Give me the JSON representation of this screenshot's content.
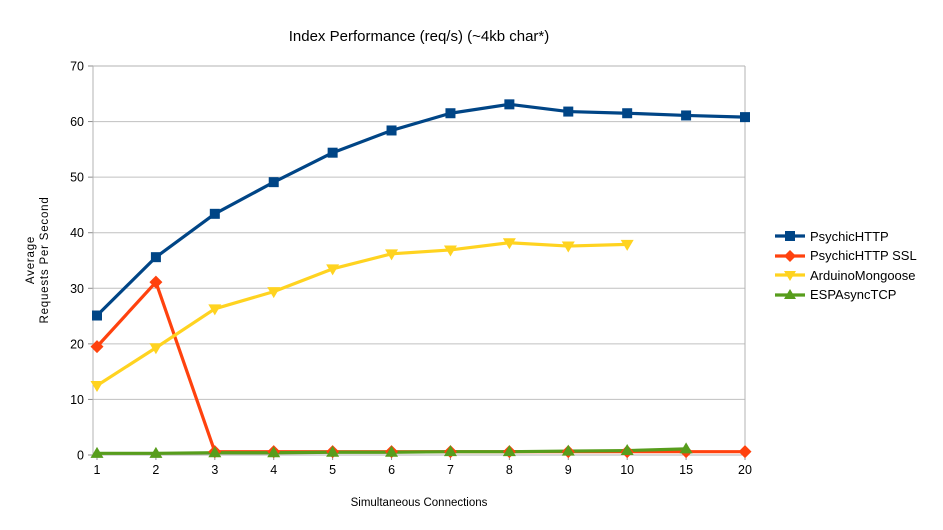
{
  "chart_data": {
    "type": "line",
    "title": "Index Performance (req/s) (~4kb char*)",
    "xlabel": "Simultaneous Connections",
    "ylabel": "Average Requests Per Second",
    "ylabel_lines": [
      "Average",
      "Requests Per Second"
    ],
    "categories": [
      "1",
      "2",
      "3",
      "4",
      "5",
      "6",
      "7",
      "8",
      "9",
      "10",
      "15",
      "20"
    ],
    "ylim": [
      0,
      70
    ],
    "yticks": [
      0,
      10,
      20,
      30,
      40,
      50,
      60,
      70
    ],
    "grid": true,
    "legend_position": "right",
    "series": [
      {
        "name": "PsychicHTTP",
        "color": "#004586",
        "marker": "square",
        "values": [
          25.1,
          35.6,
          43.4,
          49.1,
          54.4,
          58.4,
          61.5,
          63.1,
          61.8,
          61.5,
          61.1,
          60.8
        ]
      },
      {
        "name": "PsychicHTTP SSL",
        "color": "#FF420E",
        "marker": "diamond",
        "values": [
          19.5,
          31.1,
          0.6,
          0.6,
          0.6,
          0.6,
          0.6,
          0.6,
          0.6,
          0.6,
          0.6,
          0.6
        ]
      },
      {
        "name": "ArduinoMongoose",
        "color": "#FFD320",
        "marker": "triangle-down",
        "values": [
          12.5,
          19.3,
          26.3,
          29.4,
          33.5,
          36.2,
          36.9,
          38.2,
          37.6,
          37.9,
          null,
          null
        ]
      },
      {
        "name": "ESPAsyncTCP",
        "color": "#579D1C",
        "marker": "triangle-up",
        "values": [
          0.3,
          0.3,
          0.4,
          0.4,
          0.5,
          0.5,
          0.6,
          0.6,
          0.7,
          0.8,
          1.1,
          null
        ]
      }
    ],
    "colors": {
      "grid": "#c0c0c0",
      "axis": "#b3b3b3",
      "tick": "#8c8c8c",
      "text": "#000000",
      "background": "#ffffff"
    }
  }
}
